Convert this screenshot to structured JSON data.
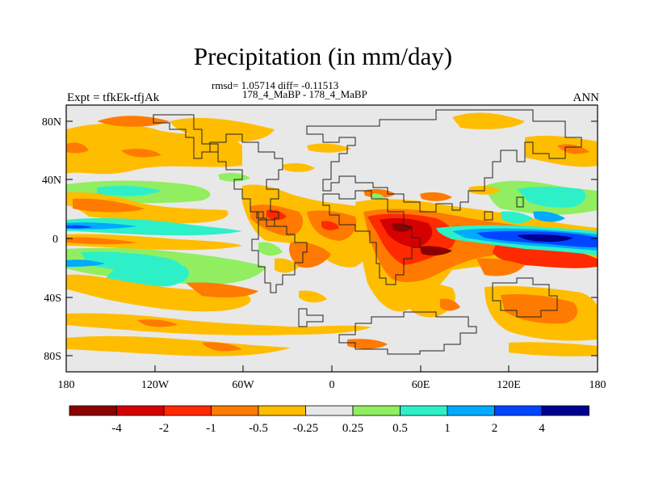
{
  "title": "Precipitation (in mm/day)",
  "stats_line": "rmsd= 1.05714 diff= -0.11513",
  "case_line": "178_4_MaBP - 178_4_MaBP",
  "expt_label": "Expt = tfkEk-tfjAk",
  "season_label": "ANN",
  "lat_ticks": [
    "80N",
    "40N",
    "0",
    "40S",
    "80S"
  ],
  "lon_ticks": [
    "180",
    "120W",
    "60W",
    "0",
    "60E",
    "120E",
    "180"
  ],
  "colorbar": {
    "labels": [
      "-4",
      "-2",
      "-1",
      "-0.5",
      "-0.25",
      "0.25",
      "0.5",
      "1",
      "2",
      "4"
    ],
    "colors": [
      "#8b0000",
      "#d50000",
      "#ff2a00",
      "#ff7a00",
      "#ffbd00",
      "#e8e8e8",
      "#90ee60",
      "#2ef0c8",
      "#00aaff",
      "#0046ff",
      "#000090"
    ]
  }
}
